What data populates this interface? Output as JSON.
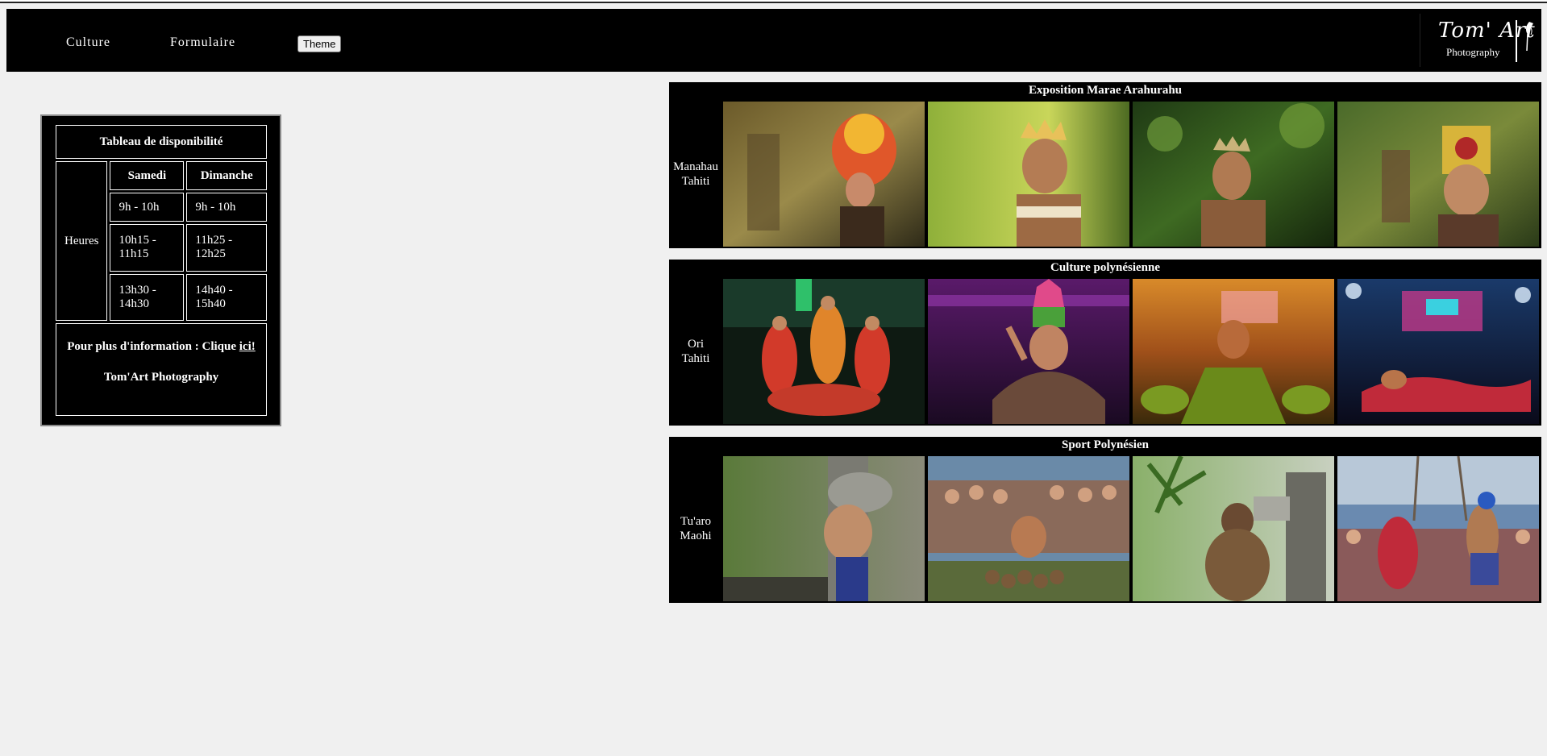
{
  "nav": {
    "items": [
      {
        "label": "Culture"
      },
      {
        "label": "Formulaire"
      }
    ],
    "theme_button": "Theme"
  },
  "logo": {
    "script": "Tom' Art",
    "sub": "Photography"
  },
  "availability": {
    "title": "Tableau de disponibilité",
    "hours_label": "Heures",
    "columns": [
      "Samedi",
      "Dimanche"
    ],
    "rows": [
      [
        "9h - 10h",
        "9h - 10h"
      ],
      [
        "10h15 - 11h15",
        "11h25 - 12h25"
      ],
      [
        "13h30 - 14h30",
        "14h40 - 15h40"
      ]
    ],
    "info_text": "Pour plus d'information : Clique",
    "info_link": "ici!",
    "brand": "Tom'Art Photography"
  },
  "galleries": [
    {
      "title": "Exposition Marae Arahurahu",
      "side_label": "Manahau\nTahiti"
    },
    {
      "title": "Culture polynésienne",
      "side_label": "Ori\nTahiti"
    },
    {
      "title": "Sport Polynésien",
      "side_label": "Tu'aro\nMaohi"
    }
  ]
}
